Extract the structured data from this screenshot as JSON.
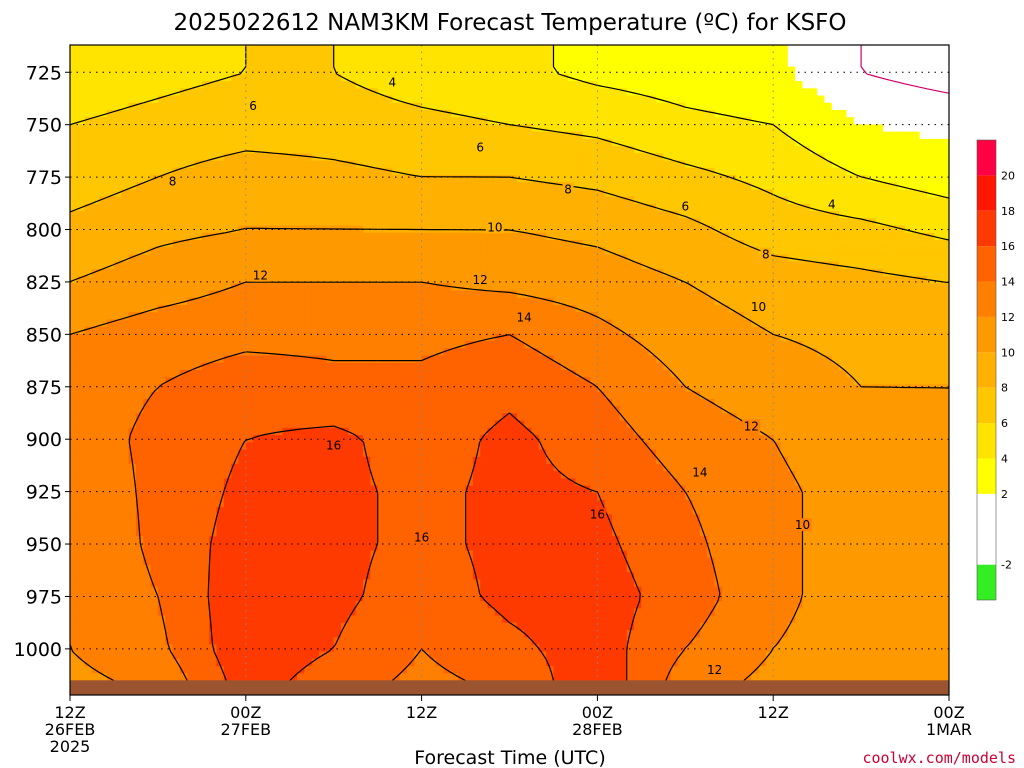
{
  "chart_data": {
    "type": "heatmap",
    "title": "2025022612 NAM3KM Forecast Temperature (ºC) for KSFO",
    "xlabel": "Forecast Time (UTC)",
    "ylabel": "",
    "credit": "coolwx.com/models",
    "x_ticks": [
      {
        "hour": 0,
        "line1": "12Z",
        "line2": "26FEB",
        "line3": "2025"
      },
      {
        "hour": 12,
        "line1": "00Z",
        "line2": "27FEB",
        "line3": ""
      },
      {
        "hour": 24,
        "line1": "12Z",
        "line2": "",
        "line3": ""
      },
      {
        "hour": 36,
        "line1": "00Z",
        "line2": "28FEB",
        "line3": ""
      },
      {
        "hour": 48,
        "line1": "12Z",
        "line2": "",
        "line3": ""
      },
      {
        "hour": 60,
        "line1": "00Z",
        "line2": "1MAR",
        "line3": ""
      }
    ],
    "xlim": [
      0,
      60
    ],
    "y_ticks": [
      725,
      750,
      775,
      800,
      825,
      850,
      875,
      900,
      925,
      950,
      975,
      1000
    ],
    "ylim": [
      712,
      1022
    ],
    "ground_pressure": 1015,
    "colorbar": {
      "ticks": [
        "-2",
        "2",
        "4",
        "6",
        "8",
        "10",
        "12",
        "14",
        "16",
        "18",
        "20"
      ],
      "bins": [
        {
          "from": -4,
          "to": -2,
          "color": "#33ee22"
        },
        {
          "from": -2,
          "to": 2,
          "color": "#ffffff"
        },
        {
          "from": 2,
          "to": 4,
          "color": "#ffff00"
        },
        {
          "from": 4,
          "to": 6,
          "color": "#ffe400"
        },
        {
          "from": 6,
          "to": 8,
          "color": "#ffc700"
        },
        {
          "from": 8,
          "to": 10,
          "color": "#ffb000"
        },
        {
          "from": 10,
          "to": 12,
          "color": "#ff9900"
        },
        {
          "from": 12,
          "to": 14,
          "color": "#ff7f00"
        },
        {
          "from": 14,
          "to": 16,
          "color": "#ff6300"
        },
        {
          "from": 16,
          "to": 18,
          "color": "#ff3a00"
        },
        {
          "from": 18,
          "to": 20,
          "color": "#ff1600"
        },
        {
          "from": 20,
          "to": 22,
          "color": "#ff0044"
        }
      ]
    },
    "temperature_profile": {
      "description_levels": [
        725,
        750,
        775,
        800,
        825,
        850,
        875,
        900,
        925,
        950,
        975,
        1000,
        1015
      ],
      "note_hours": [
        0,
        6,
        12,
        18,
        24,
        30,
        36,
        42,
        48,
        54,
        60
      ],
      "values": [
        [
          5.0,
          5.5,
          6.0,
          6.0,
          5.0,
          4.5,
          3.5,
          3.0,
          2.5,
          0.0,
          -1.0
        ],
        [
          6.0,
          6.5,
          7.0,
          7.0,
          6.5,
          6.0,
          5.5,
          4.5,
          4.0,
          2.0,
          1.5
        ],
        [
          7.0,
          8.0,
          9.0,
          8.5,
          8.0,
          8.0,
          7.5,
          6.5,
          5.5,
          4.0,
          3.0
        ],
        [
          8.5,
          9.5,
          10.0,
          10.0,
          10.0,
          10.0,
          9.5,
          8.5,
          7.0,
          6.5,
          5.5
        ],
        [
          10.0,
          11.0,
          12.0,
          12.0,
          12.0,
          11.5,
          11.0,
          10.0,
          9.0,
          8.5,
          8.0
        ],
        [
          12.0,
          13.0,
          13.5,
          13.5,
          13.5,
          14.0,
          12.5,
          11.0,
          10.0,
          9.5,
          9.0
        ],
        [
          13.0,
          14.0,
          15.0,
          14.5,
          14.5,
          15.5,
          14.0,
          12.0,
          11.0,
          10.0,
          10.0
        ],
        [
          13.0,
          14.5,
          16.0,
          16.5,
          15.0,
          16.5,
          15.0,
          13.0,
          12.0,
          10.5,
          10.5
        ],
        [
          12.5,
          14.5,
          16.5,
          16.5,
          15.5,
          16.5,
          16.0,
          14.0,
          12.5,
          11.0,
          11.0
        ],
        [
          12.0,
          14.5,
          17.0,
          16.5,
          15.5,
          16.5,
          16.5,
          14.5,
          12.5,
          11.0,
          11.0
        ],
        [
          12.0,
          14.0,
          17.5,
          16.5,
          15.0,
          16.5,
          17.0,
          15.0,
          12.5,
          11.0,
          11.0
        ],
        [
          12.0,
          13.5,
          17.5,
          16.0,
          14.0,
          15.5,
          17.0,
          14.0,
          12.0,
          11.0,
          11.5
        ],
        [
          11.5,
          12.5,
          17.0,
          15.0,
          13.5,
          14.5,
          17.5,
          13.0,
          11.5,
          11.0,
          11.5
        ]
      ]
    },
    "freezing_line_color": "#cc0066",
    "contour_labels": [
      {
        "text": "4",
        "hour": 22,
        "p": 730
      },
      {
        "text": "6",
        "hour": 12.5,
        "p": 741
      },
      {
        "text": "6",
        "hour": 28,
        "p": 761
      },
      {
        "text": "6",
        "hour": 42,
        "p": 789
      },
      {
        "text": "4",
        "hour": 52,
        "p": 788
      },
      {
        "text": "8",
        "hour": 7,
        "p": 777
      },
      {
        "text": "8",
        "hour": 34,
        "p": 781
      },
      {
        "text": "8",
        "hour": 47.5,
        "p": 812
      },
      {
        "text": "10",
        "hour": 29,
        "p": 799
      },
      {
        "text": "10",
        "hour": 47,
        "p": 837
      },
      {
        "text": "12",
        "hour": 13,
        "p": 822
      },
      {
        "text": "12",
        "hour": 28,
        "p": 824
      },
      {
        "text": "12",
        "hour": 46.5,
        "p": 894
      },
      {
        "text": "12",
        "hour": 44,
        "p": 1010
      },
      {
        "text": "14",
        "hour": 31,
        "p": 842
      },
      {
        "text": "14",
        "hour": 43,
        "p": 916
      },
      {
        "text": "16",
        "hour": 18,
        "p": 903
      },
      {
        "text": "16",
        "hour": 24,
        "p": 947
      },
      {
        "text": "16",
        "hour": 36,
        "p": 936
      },
      {
        "text": "10",
        "hour": 50,
        "p": 941
      }
    ]
  }
}
